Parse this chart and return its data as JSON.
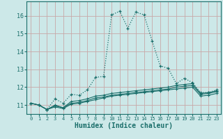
{
  "xlabel": "Humidex (Indice chaleur)",
  "background_color": "#cce8e8",
  "grid_color": "#c8a8a8",
  "line_color": "#1a6e6a",
  "xlim": [
    -0.5,
    23.5
  ],
  "ylim": [
    10.5,
    16.8
  ],
  "yticks": [
    11,
    12,
    13,
    14,
    15,
    16
  ],
  "xticks": [
    0,
    1,
    2,
    3,
    4,
    5,
    6,
    7,
    8,
    9,
    10,
    11,
    12,
    13,
    14,
    15,
    16,
    17,
    18,
    19,
    20,
    21,
    22,
    23
  ],
  "series": {
    "main": [
      11.1,
      11.0,
      10.75,
      11.35,
      11.1,
      11.6,
      11.55,
      11.85,
      12.55,
      12.6,
      16.05,
      16.25,
      15.3,
      16.2,
      16.05,
      14.6,
      13.2,
      13.05,
      12.2,
      12.5,
      12.25,
      11.7,
      11.7,
      11.85
    ],
    "flat1": [
      11.1,
      11.0,
      10.75,
      11.0,
      10.85,
      11.2,
      11.25,
      11.35,
      11.5,
      11.55,
      11.65,
      11.7,
      11.75,
      11.8,
      11.85,
      11.9,
      11.95,
      12.0,
      12.1,
      12.15,
      12.2,
      11.65,
      11.7,
      11.8
    ],
    "flat2": [
      11.1,
      11.0,
      10.75,
      10.95,
      10.85,
      11.1,
      11.15,
      11.25,
      11.4,
      11.45,
      11.55,
      11.6,
      11.65,
      11.7,
      11.75,
      11.8,
      11.85,
      11.9,
      12.0,
      12.05,
      12.1,
      11.6,
      11.65,
      11.75
    ],
    "flat3": [
      11.1,
      11.0,
      10.75,
      10.9,
      10.8,
      11.05,
      11.1,
      11.2,
      11.3,
      11.4,
      11.5,
      11.55,
      11.6,
      11.65,
      11.7,
      11.75,
      11.8,
      11.85,
      11.9,
      11.95,
      12.0,
      11.5,
      11.55,
      11.65
    ]
  }
}
